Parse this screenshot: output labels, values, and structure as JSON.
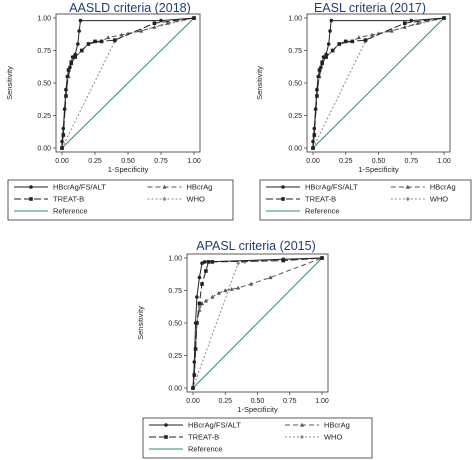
{
  "chart_data": [
    {
      "type": "line",
      "title": "AASLD criteria (2018)",
      "xlabel": "1-Specificity",
      "ylabel": "Sensitivity",
      "xlim": [
        0,
        1
      ],
      "ylim": [
        0,
        1
      ],
      "xticks": [
        "0.00",
        "0.25",
        "0.50",
        "0.75",
        "1.00"
      ],
      "yticks": [
        "0.00",
        "0.25",
        "0.50",
        "0.75",
        "1.00"
      ],
      "legend_position": "bottom",
      "series": [
        {
          "name": "HBcrAg/FS/ALT",
          "x": [
            0,
            0,
            0.01,
            0.02,
            0.03,
            0.04,
            0.05,
            0.06,
            0.07,
            0.08,
            0.1,
            0.12,
            0.13,
            0.14,
            0.75,
            1
          ],
          "y": [
            0,
            0.05,
            0.15,
            0.3,
            0.45,
            0.55,
            0.6,
            0.62,
            0.65,
            0.7,
            0.72,
            0.8,
            0.9,
            0.98,
            0.98,
            1
          ]
        },
        {
          "name": "HBcrAg",
          "x": [
            0,
            0.01,
            0.02,
            0.03,
            0.05,
            0.07,
            0.1,
            0.15,
            0.2,
            0.3,
            0.35,
            0.45,
            0.6,
            0.7,
            0.8,
            1
          ],
          "y": [
            0,
            0.1,
            0.3,
            0.45,
            0.55,
            0.65,
            0.7,
            0.75,
            0.8,
            0.82,
            0.85,
            0.87,
            0.9,
            0.93,
            0.96,
            1
          ]
        },
        {
          "name": "TREAT-B",
          "x": [
            0,
            0.01,
            0.03,
            0.05,
            0.07,
            0.1,
            0.15,
            0.2,
            0.25,
            0.3,
            0.4,
            0.7,
            1
          ],
          "y": [
            0,
            0.1,
            0.4,
            0.6,
            0.66,
            0.7,
            0.75,
            0.8,
            0.82,
            0.82,
            0.83,
            0.96,
            1
          ]
        },
        {
          "name": "WHO",
          "x": [
            0,
            0.4,
            0.5,
            1
          ],
          "y": [
            0,
            0.82,
            0.88,
            1
          ]
        },
        {
          "name": "Reference",
          "x": [
            0,
            1
          ],
          "y": [
            0,
            1
          ]
        }
      ]
    },
    {
      "type": "line",
      "title": "EASL criteria (2017)",
      "xlabel": "1-Specificity",
      "ylabel": "Sensitivity",
      "xlim": [
        0,
        1
      ],
      "ylim": [
        0,
        1
      ],
      "xticks": [
        "0.00",
        "0.25",
        "0.50",
        "0.75",
        "1.00"
      ],
      "yticks": [
        "0.00",
        "0.25",
        "0.50",
        "0.75",
        "1.00"
      ],
      "legend_position": "bottom",
      "series": [
        {
          "name": "HBcrAg/FS/ALT",
          "x": [
            0,
            0,
            0.01,
            0.02,
            0.03,
            0.04,
            0.05,
            0.06,
            0.07,
            0.08,
            0.1,
            0.12,
            0.13,
            0.14,
            0.75,
            1
          ],
          "y": [
            0,
            0.05,
            0.15,
            0.3,
            0.45,
            0.55,
            0.6,
            0.62,
            0.65,
            0.7,
            0.72,
            0.8,
            0.9,
            0.98,
            0.98,
            1
          ]
        },
        {
          "name": "HBcrAg",
          "x": [
            0,
            0.01,
            0.02,
            0.03,
            0.05,
            0.07,
            0.1,
            0.15,
            0.2,
            0.3,
            0.35,
            0.45,
            0.6,
            0.7,
            0.8,
            1
          ],
          "y": [
            0,
            0.1,
            0.3,
            0.45,
            0.55,
            0.65,
            0.7,
            0.75,
            0.8,
            0.82,
            0.85,
            0.87,
            0.9,
            0.93,
            0.96,
            1
          ]
        },
        {
          "name": "TREAT-B",
          "x": [
            0,
            0.01,
            0.03,
            0.05,
            0.07,
            0.1,
            0.15,
            0.2,
            0.25,
            0.3,
            0.4,
            0.7,
            1
          ],
          "y": [
            0,
            0.1,
            0.4,
            0.6,
            0.66,
            0.7,
            0.75,
            0.8,
            0.82,
            0.82,
            0.83,
            0.96,
            1
          ]
        },
        {
          "name": "WHO",
          "x": [
            0,
            0.4,
            0.5,
            1
          ],
          "y": [
            0,
            0.82,
            0.88,
            1
          ]
        },
        {
          "name": "Reference",
          "x": [
            0,
            1
          ],
          "y": [
            0,
            1
          ]
        }
      ]
    },
    {
      "type": "line",
      "title": "APASL criteria (2015)",
      "xlabel": "1-Specificity",
      "ylabel": "Sensitivity",
      "xlim": [
        0,
        1
      ],
      "ylim": [
        0,
        1
      ],
      "xticks": [
        "0.00",
        "0.25",
        "0.50",
        "0.75",
        "1.00"
      ],
      "yticks": [
        "0.00",
        "0.25",
        "0.50",
        "0.75",
        "1.00"
      ],
      "legend_position": "bottom",
      "series": [
        {
          "name": "HBcrAg/FS/ALT",
          "x": [
            0,
            0.01,
            0.02,
            0.03,
            0.05,
            0.07,
            0.09,
            0.7,
            1
          ],
          "y": [
            0,
            0.2,
            0.5,
            0.7,
            0.85,
            0.96,
            0.97,
            0.99,
            1
          ]
        },
        {
          "name": "HBcrAg",
          "x": [
            0,
            0.01,
            0.02,
            0.03,
            0.05,
            0.07,
            0.1,
            0.15,
            0.2,
            0.25,
            0.3,
            0.35,
            0.45,
            0.6,
            1
          ],
          "y": [
            0,
            0.1,
            0.3,
            0.5,
            0.6,
            0.65,
            0.67,
            0.7,
            0.73,
            0.75,
            0.76,
            0.77,
            0.8,
            0.85,
            1
          ]
        },
        {
          "name": "TREAT-B",
          "x": [
            0,
            0.01,
            0.02,
            0.03,
            0.05,
            0.07,
            0.1,
            0.12,
            0.15,
            0.7,
            1
          ],
          "y": [
            0,
            0.1,
            0.3,
            0.5,
            0.65,
            0.8,
            0.9,
            0.97,
            0.97,
            0.98,
            1
          ]
        },
        {
          "name": "WHO",
          "x": [
            0,
            0.35,
            0.4,
            1
          ],
          "y": [
            0,
            0.96,
            0.97,
            1
          ]
        },
        {
          "name": "Reference",
          "x": [
            0,
            1
          ],
          "y": [
            0,
            1
          ]
        }
      ]
    }
  ],
  "styles": {
    "HBcrAg/FS/ALT": {
      "color": "#222222",
      "dash": "",
      "marker": "circle"
    },
    "HBcrAg": {
      "color": "#555555",
      "dash": "5,3",
      "marker": "triangle"
    },
    "TREAT-B": {
      "color": "#222222",
      "dash": "7,3",
      "marker": "square"
    },
    "WHO": {
      "color": "#8a8a8a",
      "dash": "2,2",
      "marker": "diamond"
    },
    "Reference": {
      "color": "#2e8b7a",
      "dash": "",
      "marker": "none"
    }
  },
  "frame_color": "#333333",
  "title_color": "#1f3f6e"
}
